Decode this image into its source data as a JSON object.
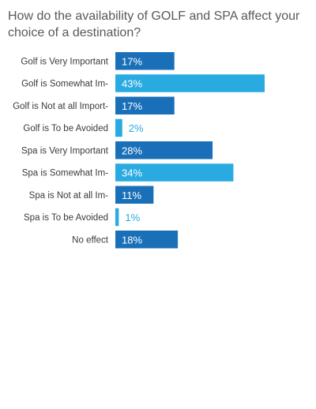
{
  "chart_data": {
    "type": "bar",
    "orientation": "horizontal",
    "title": "How do the availability of GOLF and SPA affect your choice of a destination?",
    "categories": [
      "Golf is Very Important",
      "Golf is Somewhat Im-",
      "Golf is Not at all Import-",
      "Golf is To be Avoided",
      "Spa is Very Important",
      "Spa is Somewhat Im-",
      "Spa is Not at all Im-",
      "Spa is To be Avoided",
      "No effect"
    ],
    "values": [
      17,
      43,
      17,
      2,
      28,
      34,
      11,
      1,
      18
    ],
    "value_labels": [
      "17%",
      "43%",
      "17%",
      "2%",
      "28%",
      "34%",
      "11%",
      "1%",
      "18%"
    ],
    "value_unit": "%",
    "bar_colors": [
      "#1a70b8",
      "#29abe2",
      "#1a70b8",
      "#29abe2",
      "#1a70b8",
      "#29abe2",
      "#1a70b8",
      "#29abe2",
      "#1a70b8"
    ],
    "xlim": [
      0,
      43
    ],
    "grid": false,
    "legend": "none"
  }
}
